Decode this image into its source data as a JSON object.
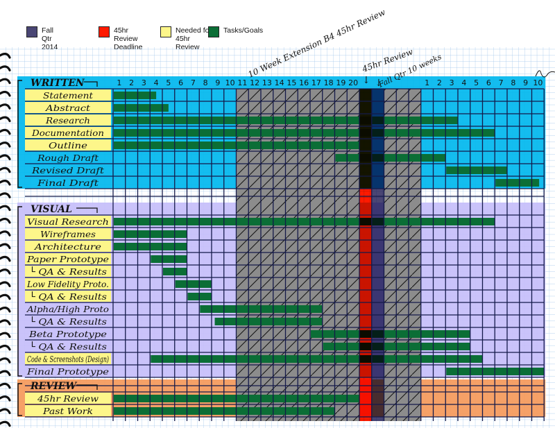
{
  "legend": [
    {
      "label": "Fall Qtr 2014",
      "color": "#4a4674"
    },
    {
      "label": "45hr Review Deadline",
      "color": "#ff1a00"
    },
    {
      "label": "Needed for 45hr Review",
      "color": "#fdf68a"
    },
    {
      "label": "Tasks/Goals",
      "color": "#0b6e36"
    }
  ],
  "annotations": {
    "extension": "10 Week Extension B4 45hr Review",
    "review": "45hr Review",
    "fall": "Fall Qtr 10 weeks"
  },
  "chart_data": {
    "type": "gantt",
    "columns": [
      "1",
      "2",
      "3",
      "4",
      "5",
      "6",
      "7",
      "8",
      "9",
      "10",
      "11",
      "12",
      "13",
      "14",
      "15",
      "16",
      "17",
      "18",
      "19",
      "20",
      "",
      "",
      "",
      "",
      "",
      "1",
      "2",
      "3",
      "4",
      "5",
      "6",
      "7",
      "8",
      "9",
      "10"
    ],
    "column_notes": {
      "review_deadline_column": 21,
      "fall_qtr_column": 22,
      "extension_columns": [
        11,
        12,
        13,
        14,
        15,
        16,
        17,
        18,
        19,
        20,
        23,
        24,
        25
      ]
    },
    "units": "week columns (0 = start of column 1)",
    "sections": [
      {
        "title": "WRITTEN",
        "color": "#00b7ee",
        "rows": [
          {
            "label": "Statement",
            "needed": true,
            "start": 0,
            "end": 3.5
          },
          {
            "label": "Abstract",
            "needed": true,
            "start": 0,
            "end": 4.5
          },
          {
            "label": "Research",
            "needed": true,
            "start": 0,
            "end": 28
          },
          {
            "label": "Documentation",
            "needed": true,
            "start": 0,
            "end": 31
          },
          {
            "label": "Outline",
            "needed": true,
            "start": 0,
            "end": 20
          },
          {
            "label": "Rough Draft",
            "needed": false,
            "start": 18,
            "end": 27
          },
          {
            "label": "Revised Draft",
            "needed": false,
            "start": 27,
            "end": 32
          },
          {
            "label": "Final Draft",
            "needed": false,
            "start": 31,
            "end": 34.6
          }
        ]
      },
      {
        "title": "VISUAL",
        "color": "#c6befa",
        "rows": [
          {
            "label": "Visual Research",
            "needed": true,
            "start": 0,
            "end": 31
          },
          {
            "label": "Wireframes",
            "needed": true,
            "start": 0,
            "end": 6
          },
          {
            "label": "Architecture",
            "needed": true,
            "start": 0,
            "end": 6
          },
          {
            "label": "Paper Prototype",
            "needed": true,
            "start": 3,
            "end": 6
          },
          {
            "label": "└ QA & Results",
            "needed": true,
            "start": 4,
            "end": 6
          },
          {
            "label": "Low Fidelity Proto.",
            "needed": true,
            "start": 5,
            "end": 8
          },
          {
            "label": "└ QA & Results",
            "needed": true,
            "start": 6,
            "end": 8
          },
          {
            "label": "Alpha/High Proto",
            "needed": false,
            "start": 7,
            "end": 17
          },
          {
            "label": "└ QA & Results",
            "needed": false,
            "start": 8.2,
            "end": 17
          },
          {
            "label": "Beta Prototype",
            "needed": false,
            "start": 16,
            "end": 29
          },
          {
            "label": "└ QA & Results",
            "needed": false,
            "start": 17,
            "end": 29
          },
          {
            "label": "Code & Screenshots (Design)",
            "needed": true,
            "start": 3,
            "end": 30
          },
          {
            "label": "Final Prototype",
            "needed": false,
            "start": 27,
            "end": 35
          }
        ]
      },
      {
        "title": "REVIEW",
        "color": "#f5995a",
        "rows": [
          {
            "label": "45hr Review",
            "needed": true,
            "start": 0,
            "end": 20
          },
          {
            "label": "Past Work",
            "needed": true,
            "start": 0,
            "end": 18
          }
        ]
      }
    ]
  }
}
